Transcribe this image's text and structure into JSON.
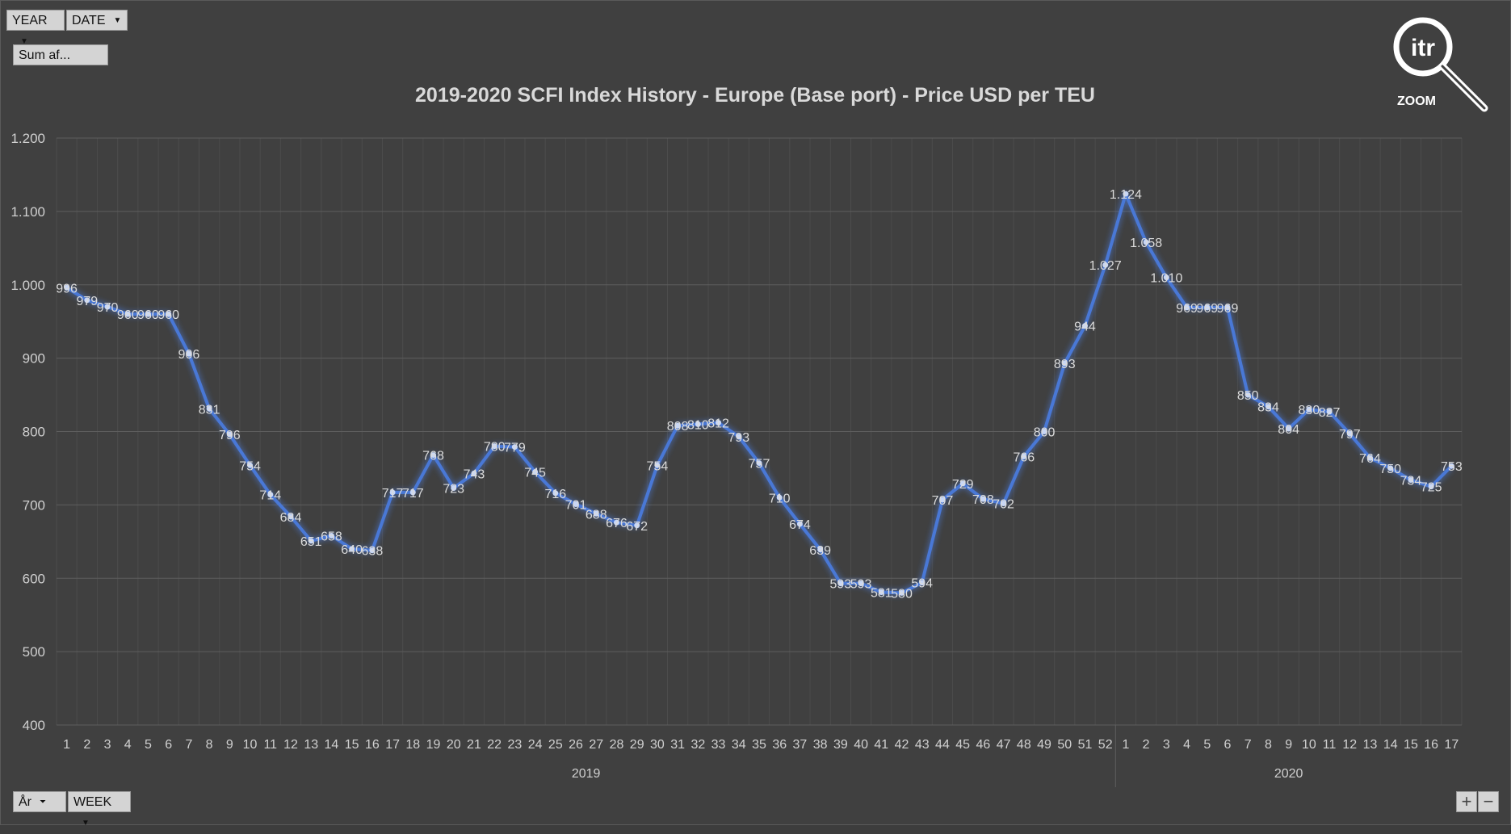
{
  "filters": {
    "year_label": "YEAR",
    "date_label": "DATE",
    "sum_label": "Sum af...",
    "ar_label": "År",
    "week_label": "WEEK"
  },
  "logo": {
    "text": "itr",
    "caption": "ZOOM"
  },
  "zoom_controls": {
    "plus": "+",
    "minus": "−"
  },
  "colors": {
    "line": "#4a78d6",
    "background": "#404040",
    "grid": "#5a5a5a",
    "text": "#d9d9d9"
  },
  "chart_data": {
    "type": "line",
    "title": "2019-2020 SCFI Index History - Europe (Base port) - Price USD per TEU",
    "xlabel": "",
    "ylabel": "",
    "ylim": [
      400,
      1200
    ],
    "yticks": [
      "400",
      "500",
      "600",
      "700",
      "800",
      "900",
      "1.000",
      "1.100",
      "1.200"
    ],
    "grid": true,
    "groups": [
      {
        "label": "2019",
        "weeks": [
          "1",
          "2",
          "3",
          "4",
          "5",
          "6",
          "7",
          "8",
          "9",
          "10",
          "11",
          "12",
          "13",
          "14",
          "15",
          "16",
          "17",
          "18",
          "19",
          "20",
          "21",
          "22",
          "23",
          "24",
          "25",
          "26",
          "27",
          "28",
          "29",
          "30",
          "31",
          "32",
          "33",
          "34",
          "35",
          "36",
          "37",
          "38",
          "39",
          "40",
          "41",
          "42",
          "43",
          "44",
          "45",
          "46",
          "47",
          "48",
          "49",
          "50",
          "51",
          "52"
        ]
      },
      {
        "label": "2020",
        "weeks": [
          "1",
          "2",
          "3",
          "4",
          "5",
          "6",
          "7",
          "8",
          "9",
          "10",
          "11",
          "12",
          "13",
          "14",
          "15",
          "16",
          "17"
        ]
      }
    ],
    "series": [
      {
        "values": [
          996,
          979,
          970,
          960,
          960,
          960,
          906,
          831,
          796,
          754,
          714,
          684,
          651,
          658,
          640,
          638,
          717,
          717,
          768,
          723,
          743,
          780,
          779,
          745,
          716,
          701,
          688,
          676,
          672,
          754,
          808,
          810,
          812,
          793,
          757,
          710,
          674,
          639,
          593,
          593,
          581,
          580,
          594,
          707,
          729,
          708,
          702,
          766,
          800,
          893,
          944,
          1027,
          1124,
          1058,
          1010,
          969,
          969,
          969,
          850,
          834,
          804,
          830,
          827,
          797,
          764,
          750,
          734,
          725,
          753
        ],
        "labels": [
          "996",
          "979",
          "970",
          "960",
          "960",
          "960",
          "906",
          "831",
          "796",
          "754",
          "714",
          "684",
          "651",
          "658",
          "640",
          "638",
          "717",
          "717",
          "768",
          "723",
          "743",
          "780",
          "779",
          "745",
          "716",
          "701",
          "688",
          "676",
          "672",
          "754",
          "808",
          "810",
          "812",
          "793",
          "757",
          "710",
          "674",
          "639",
          "593",
          "593",
          "581",
          "580",
          "594",
          "707",
          "729",
          "708",
          "702",
          "766",
          "800",
          "893",
          "944",
          "1.027",
          "1.124",
          "1.058",
          "1.010",
          "969",
          "969",
          "969",
          "850",
          "834",
          "804",
          "830",
          "827",
          "797",
          "764",
          "750",
          "734",
          "725",
          "753"
        ]
      }
    ]
  }
}
